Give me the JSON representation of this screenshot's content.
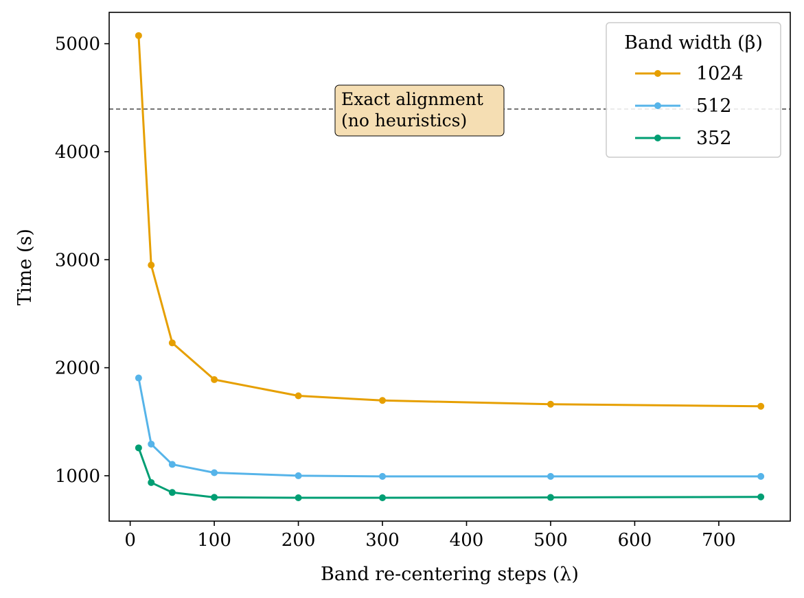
{
  "chart_data": {
    "type": "line",
    "title": "",
    "xlabel": "Band re-centering steps (λ)",
    "ylabel": "Time (s)",
    "xlim": [
      -25,
      785
    ],
    "ylim": [
      580,
      5290
    ],
    "xticks": [
      0,
      100,
      200,
      300,
      400,
      500,
      600,
      700
    ],
    "yticks": [
      1000,
      2000,
      3000,
      4000,
      5000
    ],
    "x": [
      10,
      25,
      50,
      100,
      200,
      300,
      500,
      750
    ],
    "series": [
      {
        "name": "1024",
        "color": "#E69F00",
        "values": [
          5075,
          2950,
          2230,
          1890,
          1740,
          1697,
          1662,
          1643
        ]
      },
      {
        "name": "512",
        "color": "#56B4E9",
        "values": [
          1905,
          1293,
          1105,
          1028,
          1000,
          994,
          994,
          994
        ]
      },
      {
        "name": "352",
        "color": "#009E73",
        "values": [
          1258,
          937,
          845,
          800,
          796,
          796,
          799,
          804
        ]
      }
    ],
    "reference_line": {
      "y": 4395,
      "color": "#666666",
      "style": "dashed"
    },
    "annotation": {
      "lines": [
        "Exact alignment",
        "(no heuristics)"
      ],
      "x": 250,
      "y": 4395,
      "bg": "#F5DEB3"
    },
    "legend": {
      "title": "Band width (β)",
      "position": "top-right"
    }
  }
}
